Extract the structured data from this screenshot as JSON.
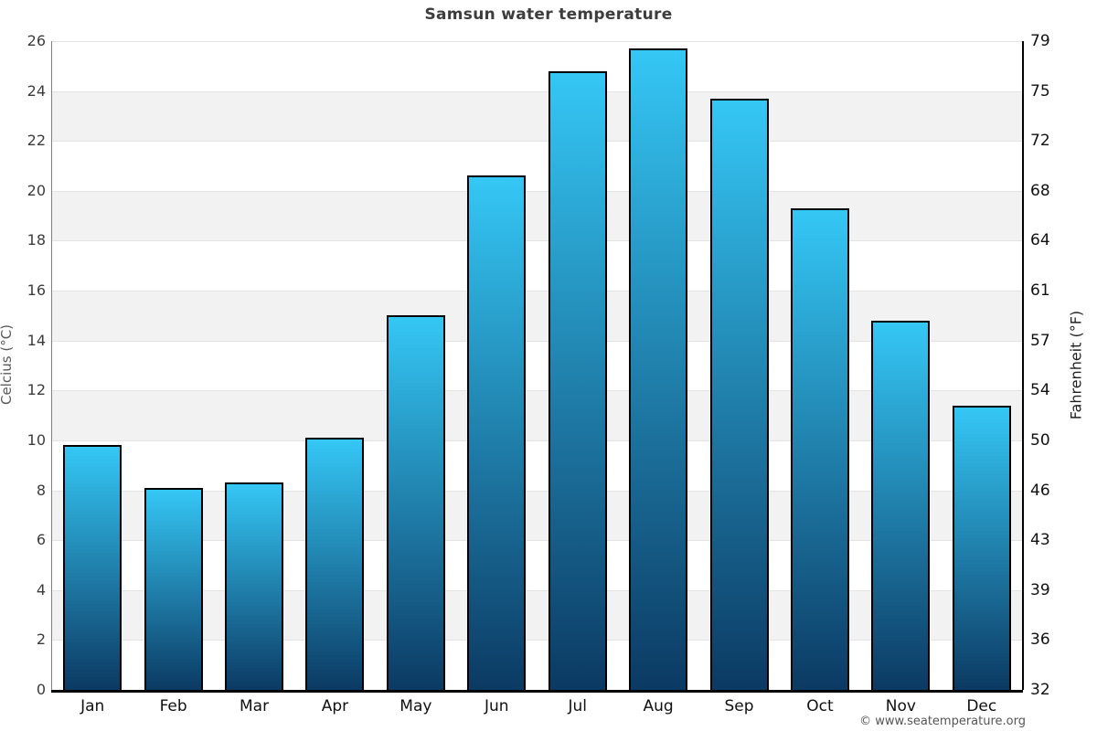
{
  "title": "Samsun water temperature",
  "attribution": "© www.seatemperature.org",
  "chart_data": {
    "type": "bar",
    "title": "Samsun water temperature",
    "categories": [
      "Jan",
      "Feb",
      "Mar",
      "Apr",
      "May",
      "Jun",
      "Jul",
      "Aug",
      "Sep",
      "Oct",
      "Nov",
      "Dec"
    ],
    "values": [
      9.8,
      8.1,
      8.3,
      10.1,
      15.0,
      20.6,
      24.8,
      25.7,
      23.7,
      19.3,
      14.8,
      11.4
    ],
    "ylabel_left": "Celcius (°C)",
    "ylabel_right": "Fahrenheit (°F)",
    "xlabel": "",
    "ylim": [
      0,
      26
    ],
    "yticks_celsius": [
      0,
      2,
      4,
      6,
      8,
      10,
      12,
      14,
      16,
      18,
      20,
      22,
      24,
      26
    ],
    "yticks_fahrenheit": [
      32,
      36,
      39,
      43,
      46,
      50,
      54,
      57,
      61,
      64,
      68,
      72,
      75,
      79
    ],
    "grid": "alternating-horizontal-bands",
    "legend": "none",
    "colors": {
      "bar_gradient_top": "#35c7f5",
      "bar_gradient_bottom": "#0b3a63",
      "bar_border": "#000000",
      "band_light": "#ffffff",
      "band_dark": "#f2f2f2",
      "gridline": "#e3e3e3",
      "title_text": "#3d3d3d",
      "left_tick_text": "#3c3c3c",
      "right_tick_text": "#111111",
      "left_spine": "#808080",
      "axis_black": "#000000",
      "attribution_text": "#555555"
    }
  }
}
